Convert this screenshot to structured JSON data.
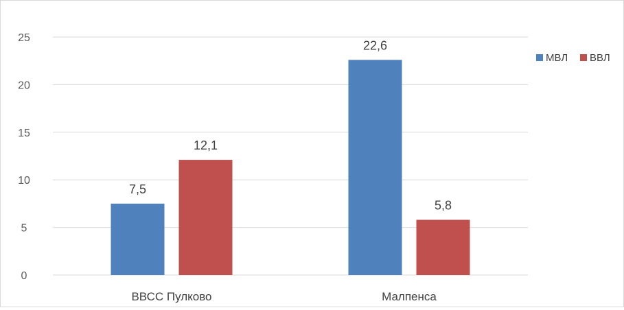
{
  "chart_data": {
    "type": "bar",
    "categories": [
      "ВВСС Пулково",
      "Малпенса"
    ],
    "series": [
      {
        "name": "МВЛ",
        "values": [
          7.5,
          22.6
        ],
        "labels": [
          "7,5",
          "22,6"
        ],
        "color": "#4f81bd"
      },
      {
        "name": "ВВЛ",
        "values": [
          12.1,
          5.8
        ],
        "labels": [
          "12,1",
          "5,8"
        ],
        "color": "#c0504d"
      }
    ],
    "title": "",
    "xlabel": "",
    "ylabel": "",
    "ylim": [
      0,
      25
    ],
    "yticks": [
      0,
      5,
      10,
      15,
      20,
      25
    ],
    "grid": true,
    "legend_position": "right",
    "gridline_color": "#d9d9d9"
  }
}
